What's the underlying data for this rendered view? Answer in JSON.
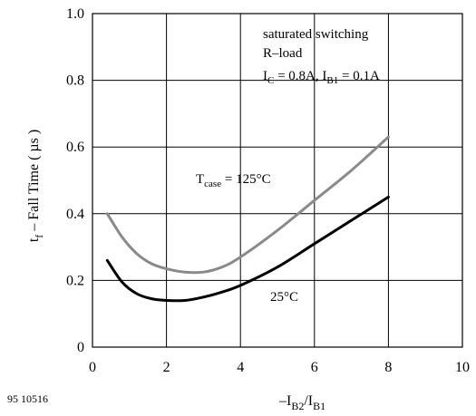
{
  "figure_id": "95 10516",
  "chart_data": {
    "type": "line",
    "xlim": [
      0,
      10
    ],
    "ylim": [
      0,
      1.0
    ],
    "x_ticks": [
      "0",
      "2",
      "4",
      "6",
      "8",
      "10"
    ],
    "y_ticks": [
      "0",
      "0.2",
      "0.4",
      "0.6",
      "0.8",
      "1.0"
    ],
    "grid": true,
    "ylabel": {
      "main": "t",
      "sub": "f",
      "rest": " – Fall Time ( µs )"
    },
    "xlabel": {
      "p1": "–I",
      "s1": "B2",
      "p2": "/I",
      "s2": "B1"
    },
    "conditions": {
      "line1": "saturated switching",
      "line2": "R–load",
      "line3_parts": [
        "I",
        "C",
        " = 0.8A, I",
        "B1",
        " = 0.1A"
      ]
    },
    "series": [
      {
        "name": "T_case = 125°C",
        "label_parts": [
          "T",
          "case",
          " = 125°C"
        ],
        "color": "#8a8a8a",
        "x": [
          0.4,
          0.8,
          1.2,
          1.6,
          2.0,
          2.5,
          3.0,
          3.5,
          4.0,
          5.0,
          6.0,
          7.0,
          8.0
        ],
        "y": [
          0.4,
          0.33,
          0.28,
          0.25,
          0.235,
          0.225,
          0.225,
          0.24,
          0.27,
          0.35,
          0.44,
          0.53,
          0.63
        ]
      },
      {
        "name": "25°C",
        "label_parts": [
          "25°C"
        ],
        "color": "#000000",
        "x": [
          0.4,
          0.8,
          1.2,
          1.6,
          2.0,
          2.5,
          3.0,
          3.5,
          4.0,
          5.0,
          6.0,
          7.0,
          8.0
        ],
        "y": [
          0.26,
          0.195,
          0.16,
          0.145,
          0.14,
          0.14,
          0.15,
          0.165,
          0.185,
          0.24,
          0.31,
          0.38,
          0.45
        ]
      }
    ]
  }
}
